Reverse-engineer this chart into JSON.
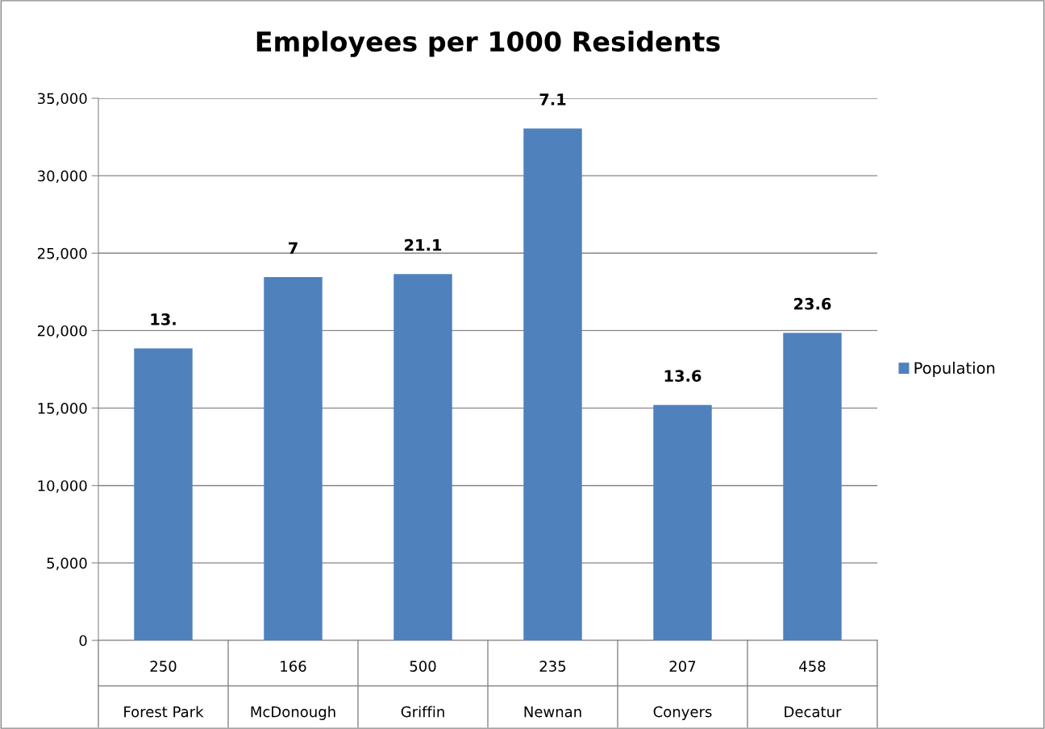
{
  "chart_data": {
    "type": "bar",
    "title": "Employees per 1000 Residents",
    "categories": [
      "250\nForest Park",
      "166\nMcDonough",
      "500\nGriffin",
      "235\nNewnan",
      "207\nConyers",
      "458\nDecatur"
    ],
    "series": [
      {
        "name": "Population",
        "color": "#4f81bd",
        "values": [
          18850,
          23450,
          23650,
          33050,
          15200,
          19850
        ]
      }
    ],
    "ylim": [
      0,
      35000
    ],
    "yticks": [
      {
        "value": 0,
        "label": "0"
      },
      {
        "value": 5000,
        "label": "5,000"
      },
      {
        "value": 10000,
        "label": "10,000"
      },
      {
        "value": 15000,
        "label": "15,000"
      },
      {
        "value": 20000,
        "label": "20,000"
      },
      {
        "value": 25000,
        "label": "25,000"
      },
      {
        "value": 30000,
        "label": "30,000"
      },
      {
        "value": 35000,
        "label": "35,000"
      }
    ],
    "grid": "y",
    "legend": "right",
    "annotations": [
      "13.",
      "7",
      "21.1",
      "7.1",
      "13.6",
      "23.6"
    ]
  }
}
